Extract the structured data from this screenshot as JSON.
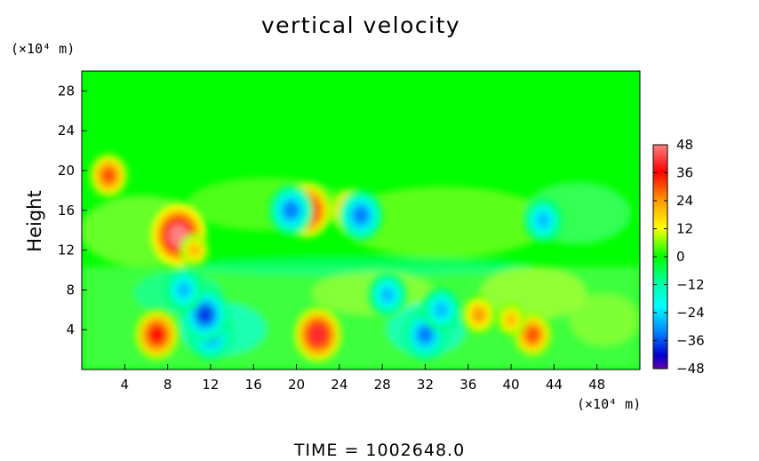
{
  "chart_data": {
    "type": "heatmap",
    "title": "vertical velocity",
    "ylabel": "Height",
    "x_unit": "(×10⁴ m)",
    "y_unit": "(×10⁴ m)",
    "xlim": [
      0,
      52
    ],
    "ylim": [
      0,
      30
    ],
    "x_ticks": [
      4,
      8,
      12,
      16,
      20,
      24,
      28,
      32,
      36,
      40,
      44,
      48
    ],
    "y_ticks": [
      4,
      8,
      12,
      16,
      20,
      24,
      28
    ],
    "colorbar": {
      "min": -48,
      "max": 48,
      "ticks": [
        48,
        36,
        24,
        12,
        0,
        -12,
        -24,
        -36,
        -48
      ],
      "colors": [
        "#ff8080",
        "#ff0000",
        "#ff9900",
        "#ffff00",
        "#00ff00",
        "#00ffaa",
        "#00ffff",
        "#0080ff",
        "#0000d0",
        "#6600aa"
      ]
    },
    "features": [
      {
        "x": 7,
        "y": 3.5,
        "value": 36
      },
      {
        "x": 12,
        "y": 3.5,
        "value": -36
      },
      {
        "x": 11.5,
        "y": 5.5,
        "value": -40
      },
      {
        "x": 22,
        "y": 3.5,
        "value": 40
      },
      {
        "x": 32,
        "y": 3.5,
        "value": -36
      },
      {
        "x": 33.5,
        "y": 6,
        "value": -30
      },
      {
        "x": 42,
        "y": 3.5,
        "value": 30
      },
      {
        "x": 40,
        "y": 5,
        "value": 20
      },
      {
        "x": 9,
        "y": 13.5,
        "value": 48
      },
      {
        "x": 9.5,
        "y": 8,
        "value": -30
      },
      {
        "x": 21,
        "y": 16,
        "value": 40
      },
      {
        "x": 19.5,
        "y": 16,
        "value": -36
      },
      {
        "x": 25,
        "y": 16,
        "value": 30
      },
      {
        "x": 26,
        "y": 15.5,
        "value": -36
      },
      {
        "x": 2.5,
        "y": 19.5,
        "value": 30
      },
      {
        "x": 43,
        "y": 15,
        "value": -30
      },
      {
        "x": 28.5,
        "y": 7.5,
        "value": -30
      },
      {
        "x": 10.5,
        "y": 12,
        "value": 20
      },
      {
        "x": 37,
        "y": 5.5,
        "value": 24
      }
    ]
  },
  "footer": {
    "time_label": "TIME = 1002648.0"
  }
}
